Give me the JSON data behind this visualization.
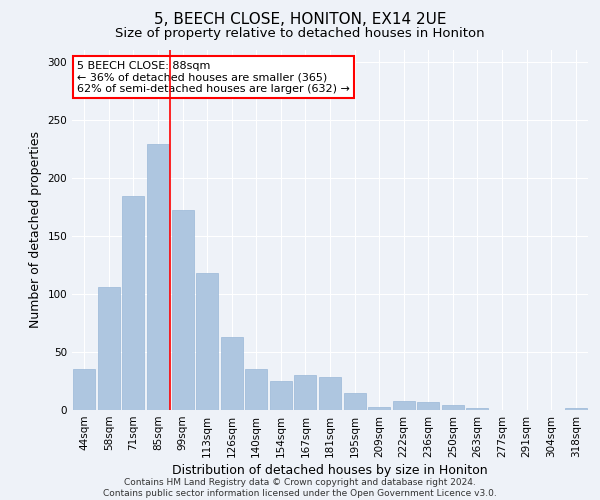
{
  "title": "5, BEECH CLOSE, HONITON, EX14 2UE",
  "subtitle": "Size of property relative to detached houses in Honiton",
  "xlabel": "Distribution of detached houses by size in Honiton",
  "ylabel": "Number of detached properties",
  "categories": [
    "44sqm",
    "58sqm",
    "71sqm",
    "85sqm",
    "99sqm",
    "113sqm",
    "126sqm",
    "140sqm",
    "154sqm",
    "167sqm",
    "181sqm",
    "195sqm",
    "209sqm",
    "222sqm",
    "236sqm",
    "250sqm",
    "263sqm",
    "277sqm",
    "291sqm",
    "304sqm",
    "318sqm"
  ],
  "values": [
    35,
    106,
    184,
    229,
    172,
    118,
    63,
    35,
    25,
    30,
    28,
    15,
    3,
    8,
    7,
    4,
    2,
    0,
    0,
    0,
    2
  ],
  "bar_color": "#aec6e0",
  "bar_edge_color": "#9ab8d8",
  "vline_x_index": 3,
  "annotation_text": "5 BEECH CLOSE: 88sqm\n← 36% of detached houses are smaller (365)\n62% of semi-detached houses are larger (632) →",
  "annotation_box_color": "white",
  "annotation_box_edge_color": "red",
  "vline_color": "red",
  "footer_text": "Contains HM Land Registry data © Crown copyright and database right 2024.\nContains public sector information licensed under the Open Government Licence v3.0.",
  "ylim": [
    0,
    310
  ],
  "background_color": "#eef2f8",
  "title_fontsize": 11,
  "subtitle_fontsize": 9.5,
  "axis_label_fontsize": 9,
  "tick_fontsize": 7.5,
  "footer_fontsize": 6.5,
  "annotation_fontsize": 8
}
